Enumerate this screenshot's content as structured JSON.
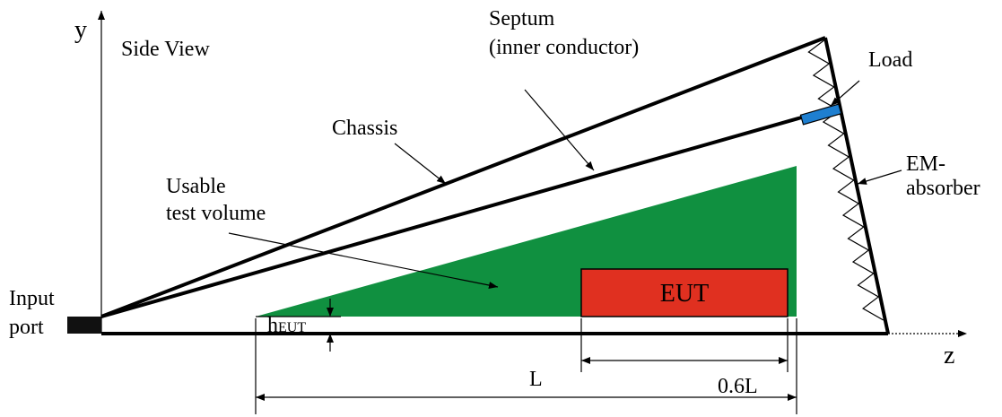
{
  "axes": {
    "y": "y",
    "z": "z"
  },
  "view": "Side View",
  "septum": [
    "Septum",
    "(inner conductor)"
  ],
  "load": "Load",
  "chassis": "Chassis",
  "em_absorber": [
    "EM-",
    "absorber"
  ],
  "usable_volume": [
    "Usable",
    "test volume"
  ],
  "input_port": [
    "Input",
    "port"
  ],
  "eut": "EUT",
  "h_eut": {
    "base": "h",
    "subscript": "EUT"
  },
  "dimensions": {
    "full": "L",
    "partial": "0.6L"
  }
}
